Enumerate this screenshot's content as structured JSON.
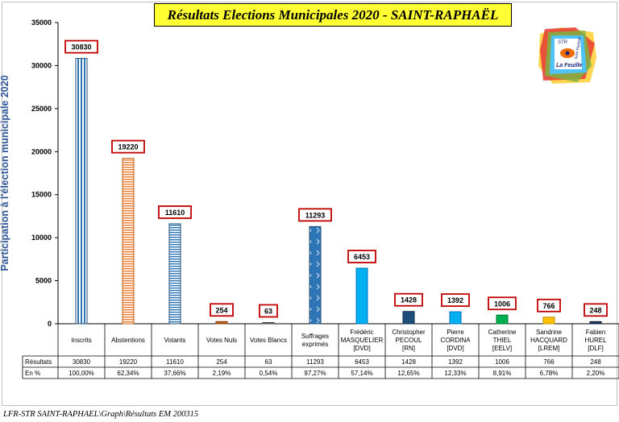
{
  "title": "Résultats Elections Municipales 2020 - SAINT-RAPHAËL",
  "footer": "LFR-STR SAINT-RAPHAEL\\Graph\\Résultats EM 200315",
  "logo": {
    "top_text": "STR",
    "side_text": "Saint-Raphaël",
    "bottom_text": "La Feuille"
  },
  "chart_data": {
    "type": "bar",
    "title": "Résultats Elections Municipales 2020 - SAINT-RAPHAËL",
    "ylabel": "Participation à l'élection municipale 2020",
    "xlabel": "",
    "ylim": [
      0,
      35000
    ],
    "yticks": [
      0,
      5000,
      10000,
      15000,
      20000,
      25000,
      30000,
      35000
    ],
    "grid": false,
    "categories": [
      [
        "Inscrits"
      ],
      [
        "Abstentions"
      ],
      [
        "Votants"
      ],
      [
        "Votes Nuls"
      ],
      [
        "Votes Blancs"
      ],
      [
        "Suffrages",
        "exprimés"
      ],
      [
        "Frédéric",
        "MASQUELIER",
        "[DVD]"
      ],
      [
        "Christopher",
        "PECOUL",
        "[RN]"
      ],
      [
        "Pierre",
        "CORDINA",
        "[DVD]"
      ],
      [
        "Catherine",
        "THIEL",
        "[EELV]"
      ],
      [
        "Sandrine",
        "HACQUARD",
        "[LREM]"
      ],
      [
        "Fabien",
        "HUREL",
        "[DLF]"
      ]
    ],
    "values": [
      30830,
      19220,
      11610,
      254,
      63,
      11293,
      6453,
      1428,
      1392,
      1006,
      766,
      248
    ],
    "data_labels": [
      "30830",
      "19220",
      "11610",
      "254",
      "63",
      "11293",
      "6453",
      "1428",
      "1392",
      "1006",
      "766",
      "248"
    ],
    "colors": [
      "#2e75b6",
      "#ed7d31",
      "#2e75b6",
      "#c55a11",
      "#7f7f7f",
      "#2e75b6",
      "#00b0f0",
      "#1f4e79",
      "#00b0f0",
      "#00b050",
      "#ffc000",
      "#1f3864"
    ],
    "table": {
      "rows": [
        {
          "label": "Résultats",
          "values": [
            "30830",
            "19220",
            "11610",
            "254",
            "63",
            "11293",
            "6453",
            "1428",
            "1392",
            "1006",
            "766",
            "248"
          ]
        },
        {
          "label": "En %",
          "values": [
            "100,00%",
            "62,34%",
            "37,66%",
            "2,19%",
            "0,54%",
            "97,27%",
            "57,14%",
            "12,65%",
            "12,33%",
            "8,91%",
            "6,78%",
            "2,20%"
          ]
        }
      ]
    }
  }
}
